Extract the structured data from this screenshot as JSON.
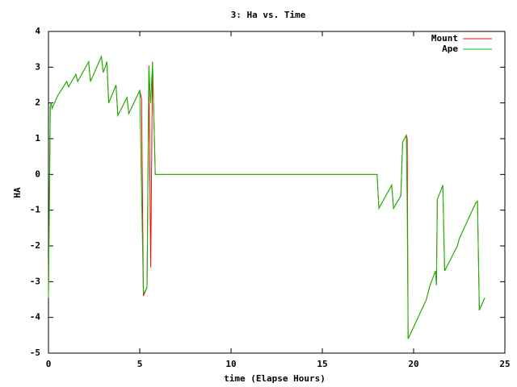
{
  "chart_data": {
    "type": "line",
    "title": "3: Ha vs. Time",
    "x_label": "time (Elapse Hours)",
    "y_label": "HA",
    "x": [
      0,
      0.1,
      0.15,
      0.2,
      0.5,
      1.0,
      1.1,
      1.5,
      1.6,
      2.2,
      2.3,
      2.9,
      3.0,
      3.2,
      3.3,
      3.7,
      3.8,
      4.3,
      4.4,
      5.0,
      5.1,
      5.2,
      5.4,
      5.5,
      5.6,
      5.7,
      5.85,
      18.0,
      18.1,
      18.8,
      18.9,
      19.3,
      19.4,
      19.6,
      19.65,
      19.7,
      20.7,
      20.9,
      21.2,
      21.25,
      21.3,
      21.6,
      21.7,
      22.4,
      22.5,
      23.4,
      23.5,
      23.6,
      23.9
    ],
    "series": [
      {
        "name": "Mount",
        "color": "#ff0000",
        "values": [
          -3.45,
          1.9,
          2.0,
          1.85,
          2.2,
          2.6,
          2.45,
          2.8,
          2.6,
          3.15,
          2.6,
          3.3,
          2.85,
          3.15,
          2.0,
          2.5,
          1.65,
          2.15,
          1.7,
          2.35,
          2.1,
          -3.4,
          -3.15,
          3.05,
          -2.6,
          3.15,
          0,
          0,
          -0.95,
          -0.3,
          -0.95,
          -0.6,
          0.9,
          1.1,
          1.0,
          -4.6,
          -3.5,
          -3.1,
          -2.7,
          -3.1,
          -0.7,
          -0.3,
          -2.7,
          -2.0,
          -1.8,
          -0.8,
          -0.75,
          -3.8,
          -3.45
        ]
      },
      {
        "name": "Ape",
        "color": "#00c000",
        "values": [
          -3.45,
          1.9,
          2.0,
          1.85,
          2.2,
          2.6,
          2.45,
          2.8,
          2.6,
          3.15,
          2.6,
          3.3,
          2.85,
          3.15,
          2.0,
          2.5,
          1.65,
          2.15,
          1.7,
          2.35,
          -0.5,
          -3.35,
          -3.15,
          3.0,
          2.0,
          3.15,
          0,
          0,
          -0.95,
          -0.3,
          -0.95,
          -0.6,
          0.9,
          1.1,
          -1.0,
          -4.6,
          -3.5,
          -3.1,
          -2.7,
          -3.1,
          -0.7,
          -0.3,
          -2.7,
          -2.0,
          -1.8,
          -0.8,
          -0.75,
          -3.8,
          -3.45
        ]
      }
    ],
    "xlim": [
      0,
      25
    ],
    "xticks": [
      0,
      5,
      10,
      15,
      20,
      25
    ],
    "ylim": [
      -5,
      4
    ],
    "yticks": [
      -5,
      -4,
      -3,
      -2,
      -1,
      0,
      1,
      2,
      3,
      4
    ],
    "legend": "top-right"
  }
}
